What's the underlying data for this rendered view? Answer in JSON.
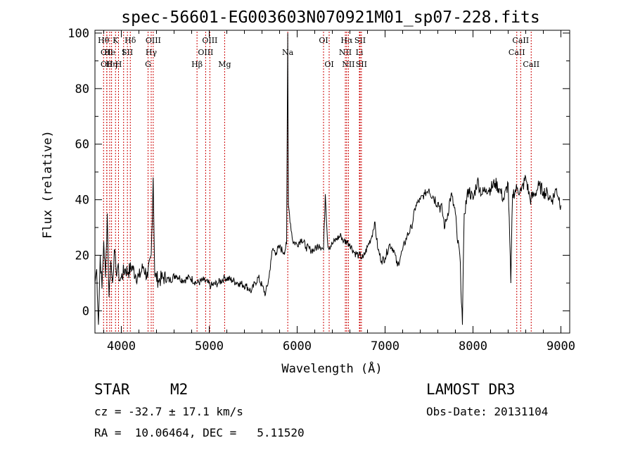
{
  "chart_data": {
    "type": "line",
    "title": "spec-56601-EG003603N070921M01_sp07-228.fits",
    "xlabel": "Wavelength (Å)",
    "ylabel": "Flux (relative)",
    "xlim": [
      3700,
      9100
    ],
    "ylim": [
      -8,
      101
    ],
    "xticks": [
      4000,
      5000,
      6000,
      7000,
      8000,
      9000
    ],
    "yticks": [
      0,
      20,
      40,
      60,
      80,
      100
    ],
    "grid": false,
    "line_color": "#000000",
    "marker_color": "#cc0000",
    "series": [
      {
        "x": [
          3700,
          3720,
          3740,
          3760,
          3780,
          3800,
          3820,
          3840,
          3860,
          3880,
          3900,
          3920,
          3940,
          3960,
          3980,
          4000,
          4040,
          4080,
          4120,
          4160,
          4200,
          4250,
          4300,
          4340,
          4362,
          4380,
          4420,
          4480,
          4550,
          4620,
          4700,
          4780,
          4860,
          4940,
          5020,
          5100,
          5180,
          5260,
          5340,
          5420,
          5480,
          5520,
          5560,
          5600,
          5640,
          5680,
          5700,
          5720,
          5760,
          5800,
          5850,
          5880,
          5893,
          5900,
          5950,
          6000,
          6050,
          6100,
          6150,
          6200,
          6250,
          6300,
          6320,
          6350,
          6400,
          6450,
          6500,
          6530,
          6563,
          6600,
          6650,
          6700,
          6750,
          6800,
          6850,
          6880,
          6920,
          6960,
          7000,
          7050,
          7100,
          7140,
          7180,
          7200,
          7250,
          7300,
          7350,
          7400,
          7450,
          7500,
          7550,
          7600,
          7650,
          7680,
          7700,
          7750,
          7800,
          7820,
          7850,
          7880,
          7900,
          7950,
          8000,
          8050,
          8100,
          8150,
          8200,
          8250,
          8300,
          8350,
          8400,
          8430,
          8450,
          8500,
          8550,
          8600,
          8650,
          8700,
          8750,
          8800,
          8850,
          8900,
          8950,
          9000
        ],
        "values": [
          10,
          15,
          -5,
          20,
          8,
          25,
          12,
          35,
          5,
          18,
          10,
          22,
          14,
          16,
          11,
          12,
          15,
          14,
          16,
          13,
          12,
          16,
          12,
          20,
          48,
          13,
          11,
          12,
          11,
          13,
          11,
          12,
          10,
          11,
          9,
          10,
          12,
          11,
          10,
          9,
          7,
          10,
          12,
          9,
          6,
          12,
          18,
          22,
          21,
          23,
          21,
          24,
          100,
          38,
          25,
          24,
          26,
          23,
          22,
          22,
          24,
          22,
          42,
          23,
          24,
          26,
          27,
          25,
          25,
          24,
          21,
          20,
          19,
          23,
          27,
          32,
          22,
          18,
          19,
          24,
          22,
          16,
          20,
          22,
          27,
          30,
          38,
          40,
          42,
          44,
          41,
          39,
          36,
          30,
          33,
          42,
          35,
          26,
          20,
          -5,
          35,
          44,
          40,
          47,
          42,
          44,
          44,
          46,
          44,
          40,
          46,
          10,
          42,
          44,
          43,
          48,
          40,
          42,
          45,
          43,
          42,
          40,
          44,
          38
        ]
      }
    ],
    "line_markers": [
      {
        "wl": 3798,
        "row": 1,
        "label": "Hθ"
      },
      {
        "wl": 3835,
        "row": 2,
        "label": "OII"
      },
      {
        "wl": 3835,
        "row": 3,
        "label": "OII"
      },
      {
        "wl": 3868,
        "row": 2,
        "label": "He"
      },
      {
        "wl": 3889,
        "row": 3,
        "label": "Hη"
      },
      {
        "wl": 3934,
        "row": 1,
        "label": "K"
      },
      {
        "wl": 3968,
        "row": 3,
        "label": "H"
      },
      {
        "wl": 4026,
        "row": 2,
        "label": "I"
      },
      {
        "wl": 4069,
        "row": 2,
        "label": "SII"
      },
      {
        "wl": 4102,
        "row": 1,
        "label": "Hδ"
      },
      {
        "wl": 4304,
        "row": 3,
        "label": "G"
      },
      {
        "wl": 4340,
        "row": 2,
        "label": "Hγ"
      },
      {
        "wl": 4363,
        "row": 1,
        "label": "OIII"
      },
      {
        "wl": 4861,
        "row": 3,
        "label": "Hβ"
      },
      {
        "wl": 4959,
        "row": 2,
        "label": "OIII"
      },
      {
        "wl": 5007,
        "row": 1,
        "label": "OIII"
      },
      {
        "wl": 5175,
        "row": 3,
        "label": "Mg"
      },
      {
        "wl": 5893,
        "row": 2,
        "label": "Na"
      },
      {
        "wl": 6300,
        "row": 1,
        "label": "OI"
      },
      {
        "wl": 6364,
        "row": 3,
        "label": "OI"
      },
      {
        "wl": 6548,
        "row": 2,
        "label": "NII"
      },
      {
        "wl": 6563,
        "row": 1,
        "label": "Hα"
      },
      {
        "wl": 6583,
        "row": 3,
        "label": "NII"
      },
      {
        "wl": 6708,
        "row": 2,
        "label": "Li"
      },
      {
        "wl": 6716,
        "row": 1,
        "label": "SII"
      },
      {
        "wl": 6731,
        "row": 3,
        "label": "SII"
      },
      {
        "wl": 8498,
        "row": 2,
        "label": "CaII"
      },
      {
        "wl": 8542,
        "row": 1,
        "label": "CaII"
      },
      {
        "wl": 8662,
        "row": 3,
        "label": "CaII"
      }
    ]
  },
  "info": {
    "class": "STAR",
    "subclass": "M2",
    "survey": "LAMOST DR3",
    "redshift": "cz = -32.7 ± 17.1 km/s",
    "obs_date": "Obs-Date: 20131104",
    "coords": "RA =  10.06464, DEC =   5.11520"
  }
}
